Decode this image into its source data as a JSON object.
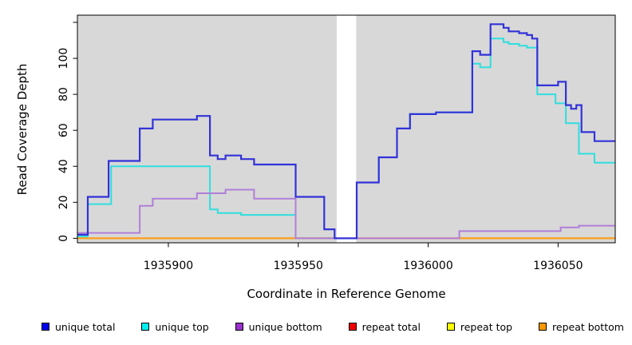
{
  "chart_data": {
    "type": "line",
    "subtype": "step-coverage",
    "title": "",
    "xlabel": "Coordinate in Reference Genome",
    "ylabel": "Read Coverage Depth",
    "xlim": [
      1935865,
      1936072
    ],
    "ylim": [
      -2.5,
      124
    ],
    "x_ticks": [
      {
        "value": 1935900,
        "label": "1935900"
      },
      {
        "value": 1935950,
        "label": "1935950"
      },
      {
        "value": 1936000,
        "label": "1936000"
      },
      {
        "value": 1936050,
        "label": "1936050"
      }
    ],
    "y_ticks": [
      {
        "value": 0,
        "label": "0"
      },
      {
        "value": 20,
        "label": "20"
      },
      {
        "value": 40,
        "label": "40"
      },
      {
        "value": 60,
        "label": "60"
      },
      {
        "value": 80,
        "label": "80"
      },
      {
        "value": 100,
        "label": "100"
      },
      {
        "value": 120,
        "label": ""
      }
    ],
    "grid": false,
    "legend_position": "bottom",
    "plot_background": "#d8d8d8",
    "gap_region": {
      "start": 1935964.8,
      "end": 1935972.3,
      "color": "#ffffff"
    },
    "series": [
      {
        "name": "unique total",
        "line_color": "#3232d8",
        "marker_color": "#0000ee",
        "breaks_at_gap": false,
        "steps": [
          [
            1935865,
            2
          ],
          [
            1935869,
            23
          ],
          [
            1935877,
            43
          ],
          [
            1935889,
            61
          ],
          [
            1935894,
            66
          ],
          [
            1935911,
            68
          ],
          [
            1935916,
            46
          ],
          [
            1935919,
            44
          ],
          [
            1935922,
            46
          ],
          [
            1935928,
            44
          ],
          [
            1935933,
            41
          ],
          [
            1935949,
            23
          ],
          [
            1935960,
            5
          ],
          [
            1935964,
            0
          ],
          [
            1935972.5,
            31
          ],
          [
            1935981,
            45
          ],
          [
            1935988,
            61
          ],
          [
            1935993,
            69
          ],
          [
            1936003,
            70
          ],
          [
            1936017,
            104
          ],
          [
            1936020,
            102
          ],
          [
            1936024,
            119
          ],
          [
            1936029,
            117
          ],
          [
            1936031,
            115
          ],
          [
            1936035,
            114
          ],
          [
            1936038,
            113
          ],
          [
            1936040,
            111
          ],
          [
            1936042,
            85
          ],
          [
            1936050,
            87
          ],
          [
            1936053,
            74
          ],
          [
            1936055,
            72
          ],
          [
            1936057,
            74
          ],
          [
            1936059,
            59
          ],
          [
            1936064,
            54
          ]
        ]
      },
      {
        "name": "unique top",
        "line_color": "#30dede",
        "marker_color": "#00eeee",
        "breaks_at_gap": true,
        "steps": [
          [
            1935865,
            1
          ],
          [
            1935869,
            19
          ],
          [
            1935878,
            40
          ],
          [
            1935916,
            16
          ],
          [
            1935919,
            14
          ],
          [
            1935928,
            13
          ],
          [
            1935949,
            0
          ],
          [
            1935972.5,
            31
          ],
          [
            1935981,
            45
          ],
          [
            1935988,
            61
          ],
          [
            1935993,
            69
          ],
          [
            1936003,
            70
          ],
          [
            1936017,
            97
          ],
          [
            1936020,
            95
          ],
          [
            1936024,
            111
          ],
          [
            1936029,
            109
          ],
          [
            1936031,
            108
          ],
          [
            1936035,
            107
          ],
          [
            1936038,
            106
          ],
          [
            1936042,
            80
          ],
          [
            1936049,
            75
          ],
          [
            1936053,
            64
          ],
          [
            1936058,
            47
          ],
          [
            1936064,
            42
          ]
        ]
      },
      {
        "name": "unique bottom",
        "line_color": "#b07fd8",
        "marker_color": "#9932cc",
        "breaks_at_gap": true,
        "steps": [
          [
            1935865,
            3
          ],
          [
            1935889,
            18
          ],
          [
            1935894,
            22
          ],
          [
            1935911,
            25
          ],
          [
            1935922,
            27
          ],
          [
            1935933,
            22
          ],
          [
            1935949,
            0
          ],
          [
            1936012,
            4
          ],
          [
            1936051,
            6
          ],
          [
            1936058,
            7
          ]
        ]
      },
      {
        "name": "repeat total",
        "line_color": "#e03030",
        "marker_color": "#ee0000",
        "breaks_at_gap": true,
        "steps": [
          [
            1935865,
            0
          ]
        ]
      },
      {
        "name": "repeat top",
        "line_color": "#ffee00",
        "marker_color": "#ffff00",
        "breaks_at_gap": true,
        "steps": [
          [
            1935865,
            0
          ]
        ]
      },
      {
        "name": "repeat bottom",
        "line_color": "#ff9d1e",
        "marker_color": "#ff9900",
        "breaks_at_gap": true,
        "steps": [
          [
            1935865,
            0
          ]
        ]
      }
    ]
  }
}
